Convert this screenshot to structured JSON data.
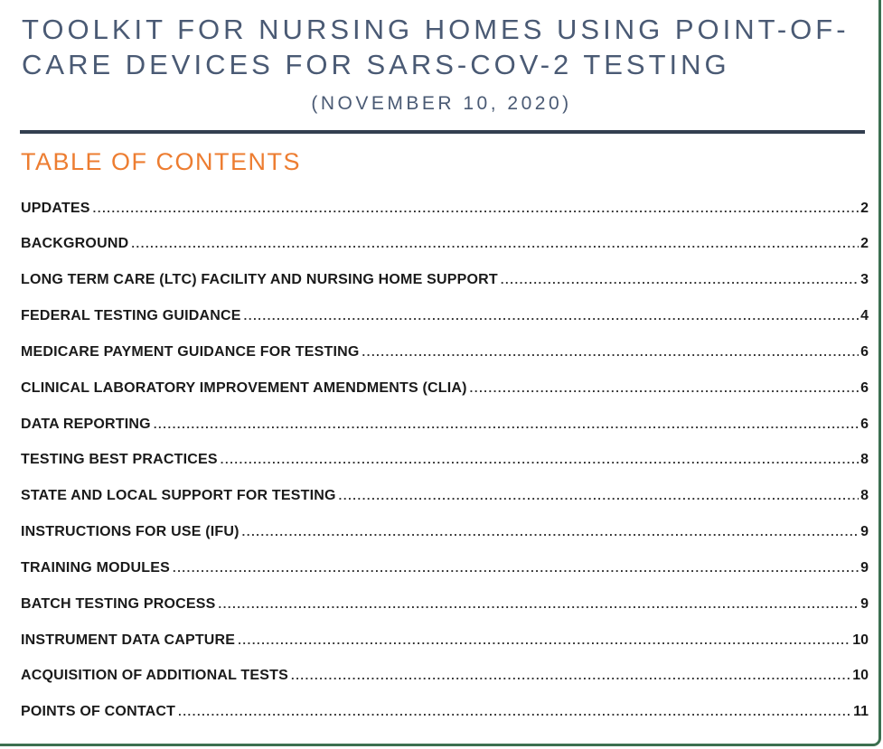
{
  "colors": {
    "title-slate": "#4A5A74",
    "rule-navy": "#333F50",
    "accent-orange": "#ED7D31",
    "ink": "#1A1A1A",
    "dots": "#2B2B2B",
    "frame-green": "#3C7050"
  },
  "header": {
    "title_line1": "TOOLKIT FOR NURSING HOMES USING POINT-OF-",
    "title_line2": "CARE DEVICES FOR SARS-COV-2 TESTING",
    "subtitle": "(NOVEMBER 10, 2020)"
  },
  "toc": {
    "heading": "TABLE OF CONTENTS",
    "entries": [
      {
        "label": "UPDATES",
        "page": "2"
      },
      {
        "label": "BACKGROUND",
        "page": "2"
      },
      {
        "label": "LONG TERM CARE (LTC) FACILITY AND NURSING HOME SUPPORT",
        "page": "3"
      },
      {
        "label": "FEDERAL TESTING GUIDANCE",
        "page": "4"
      },
      {
        "label": "MEDICARE PAYMENT GUIDANCE FOR TESTING",
        "page": "6"
      },
      {
        "label": "CLINICAL LABORATORY IMPROVEMENT AMENDMENTS (CLIA)",
        "page": "6"
      },
      {
        "label": "DATA REPORTING",
        "page": "6"
      },
      {
        "label": "TESTING BEST PRACTICES",
        "page": "8"
      },
      {
        "label": "STATE AND LOCAL SUPPORT FOR TESTING",
        "page": "8"
      },
      {
        "label": "INSTRUCTIONS FOR USE (IFU)",
        "page": "9"
      },
      {
        "label": "TRAINING MODULES",
        "page": "9"
      },
      {
        "label": "BATCH TESTING PROCESS",
        "page": "9"
      },
      {
        "label": "INSTRUMENT DATA CAPTURE",
        "page": "10"
      },
      {
        "label": "ACQUISITION OF ADDITIONAL TESTS",
        "page": "10"
      },
      {
        "label": "POINTS OF CONTACT",
        "page": "11"
      }
    ]
  }
}
